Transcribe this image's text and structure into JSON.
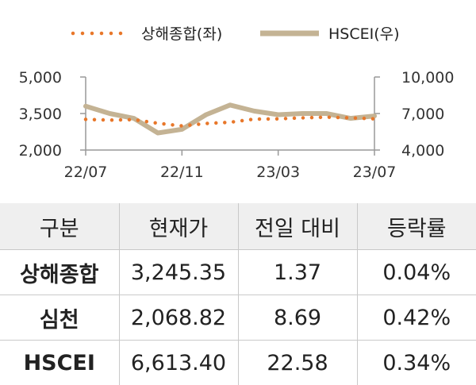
{
  "chart_data": {
    "type": "line",
    "x_ticks": [
      "22/07",
      "22/11",
      "23/03",
      "23/07"
    ],
    "y_left": {
      "ticks": [
        "5,000",
        "3,500",
        "2,000"
      ],
      "ylim": [
        2000,
        5000
      ]
    },
    "y_right": {
      "ticks": [
        "10,000",
        "7,000",
        "4,000"
      ],
      "ylim": [
        4000,
        10000
      ]
    },
    "legend_position": "top",
    "grid": false,
    "series": [
      {
        "name": "상해종합(좌)",
        "axis": "left",
        "style": "dotted",
        "color": "#e8772a",
        "x": [
          "22/07",
          "22/08",
          "22/09",
          "22/10",
          "22/11",
          "22/12",
          "23/01",
          "23/02",
          "23/03",
          "23/04",
          "23/05",
          "23/06",
          "23/07"
        ],
        "values": [
          3260,
          3230,
          3250,
          3100,
          2990,
          3090,
          3140,
          3270,
          3280,
          3320,
          3350,
          3320,
          3280
        ]
      },
      {
        "name": "HSCEI(우)",
        "axis": "right",
        "style": "solid",
        "color": "#c4b394",
        "x": [
          "22/07",
          "22/08",
          "22/09",
          "22/10",
          "22/11",
          "22/12",
          "23/01",
          "23/02",
          "23/03",
          "23/04",
          "23/05",
          "23/06",
          "23/07"
        ],
        "values": [
          7600,
          7000,
          6600,
          5400,
          5700,
          6900,
          7700,
          7200,
          6900,
          7000,
          7000,
          6600,
          6800
        ]
      }
    ]
  },
  "table": {
    "headers": [
      "구분",
      "현재가",
      "전일 대비",
      "등락률"
    ],
    "rows": [
      [
        "상해종합",
        "3,245.35",
        "1.37",
        "0.04%"
      ],
      [
        "심천",
        "2,068.82",
        "8.69",
        "0.42%"
      ],
      [
        "HSCEI",
        "6,613.40",
        "22.58",
        "0.34%"
      ]
    ]
  },
  "colors": {
    "header_bg": "#efefef",
    "grid_line": "#c9c9c9",
    "axis": "#999999"
  }
}
